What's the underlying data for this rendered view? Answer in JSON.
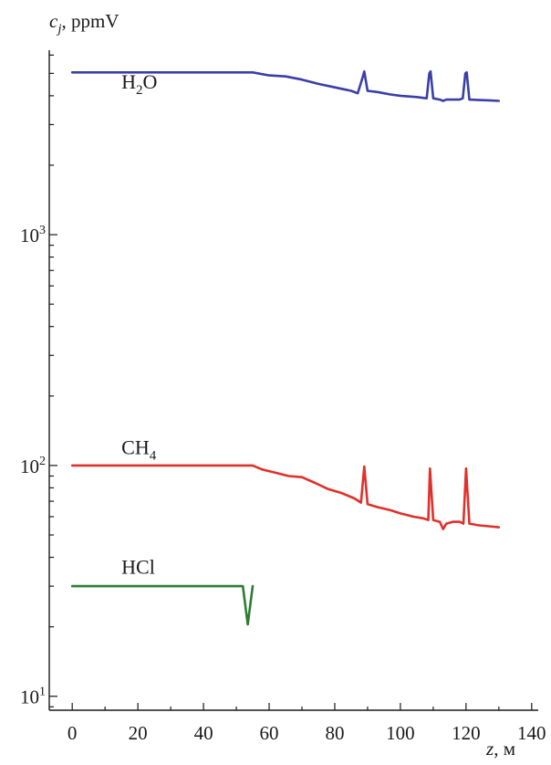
{
  "chart_data": {
    "type": "line",
    "title": "",
    "xlabel": "z, м",
    "ylabel": "c_j, ppmV",
    "xlabel_parts": {
      "var": "z",
      "unit": ", м"
    },
    "ylabel_parts": {
      "var": "c",
      "sub": "j",
      "unit": ", ppmV"
    },
    "xlim": [
      -7,
      142
    ],
    "ylim": [
      8.7,
      6300
    ],
    "yscale": "log",
    "grid": false,
    "x_ticks": [
      0,
      20,
      40,
      60,
      80,
      100,
      120,
      140
    ],
    "y_ticks": [
      {
        "value": 10,
        "base": "10",
        "exp": "1"
      },
      {
        "value": 100,
        "base": "10",
        "exp": "2"
      },
      {
        "value": 1000,
        "base": "10",
        "exp": "3"
      }
    ],
    "series": [
      {
        "name": "H2O",
        "label_parts": {
          "pre": "H",
          "sub": "2",
          "post": "O"
        },
        "label_at": {
          "x": 15,
          "y": 4300
        },
        "color": "#3a3fa8",
        "points": [
          [
            0,
            5050
          ],
          [
            10,
            5050
          ],
          [
            20,
            5050
          ],
          [
            30,
            5050
          ],
          [
            40,
            5050
          ],
          [
            50,
            5050
          ],
          [
            55,
            5050
          ],
          [
            60,
            4900
          ],
          [
            65,
            4850
          ],
          [
            70,
            4700
          ],
          [
            75,
            4500
          ],
          [
            80,
            4350
          ],
          [
            85,
            4200
          ],
          [
            87,
            4100
          ],
          [
            88.5,
            4800
          ],
          [
            89,
            5100
          ],
          [
            90,
            4200
          ],
          [
            93,
            4150
          ],
          [
            97,
            4050
          ],
          [
            100,
            4000
          ],
          [
            105,
            3950
          ],
          [
            108,
            3900
          ],
          [
            108.8,
            5000
          ],
          [
            109.2,
            5100
          ],
          [
            110,
            3900
          ],
          [
            112,
            3850
          ],
          [
            113,
            3800
          ],
          [
            114,
            3850
          ],
          [
            116,
            3850
          ],
          [
            118,
            3850
          ],
          [
            119,
            3900
          ],
          [
            119.8,
            5000
          ],
          [
            120.2,
            5050
          ],
          [
            121,
            3850
          ],
          [
            124,
            3830
          ],
          [
            127,
            3820
          ],
          [
            130,
            3800
          ]
        ]
      },
      {
        "name": "CH4",
        "label_parts": {
          "pre": "CH",
          "sub": "4",
          "post": ""
        },
        "label_at": {
          "x": 15,
          "y": 112
        },
        "color": "#e0302a",
        "points": [
          [
            0,
            100
          ],
          [
            10,
            100
          ],
          [
            20,
            100
          ],
          [
            30,
            100
          ],
          [
            40,
            100
          ],
          [
            50,
            100
          ],
          [
            55,
            100
          ],
          [
            58,
            96
          ],
          [
            62,
            93
          ],
          [
            66,
            90
          ],
          [
            70,
            89
          ],
          [
            74,
            84
          ],
          [
            78,
            79
          ],
          [
            82,
            76
          ],
          [
            86,
            72
          ],
          [
            88,
            69
          ],
          [
            89,
            99
          ],
          [
            90,
            68
          ],
          [
            93,
            66
          ],
          [
            97,
            64
          ],
          [
            100,
            62
          ],
          [
            104,
            60
          ],
          [
            107,
            59
          ],
          [
            108.5,
            58
          ],
          [
            109,
            97
          ],
          [
            110,
            58
          ],
          [
            112,
            57
          ],
          [
            113,
            53
          ],
          [
            114,
            56
          ],
          [
            116,
            57
          ],
          [
            118,
            57
          ],
          [
            119.2,
            56
          ],
          [
            120,
            97
          ],
          [
            121,
            56
          ],
          [
            124,
            55
          ],
          [
            127,
            54.5
          ],
          [
            130,
            54
          ]
        ]
      },
      {
        "name": "HCl",
        "label_parts": {
          "pre": "HCl",
          "sub": "",
          "post": ""
        },
        "label_at": {
          "x": 15,
          "y": 34
        },
        "color": "#2e7d32",
        "points": [
          [
            0,
            30
          ],
          [
            10,
            30
          ],
          [
            20,
            30
          ],
          [
            30,
            30
          ],
          [
            40,
            30
          ],
          [
            50,
            30
          ],
          [
            52,
            30
          ],
          [
            53.5,
            20.5
          ],
          [
            55,
            30
          ]
        ]
      }
    ]
  }
}
